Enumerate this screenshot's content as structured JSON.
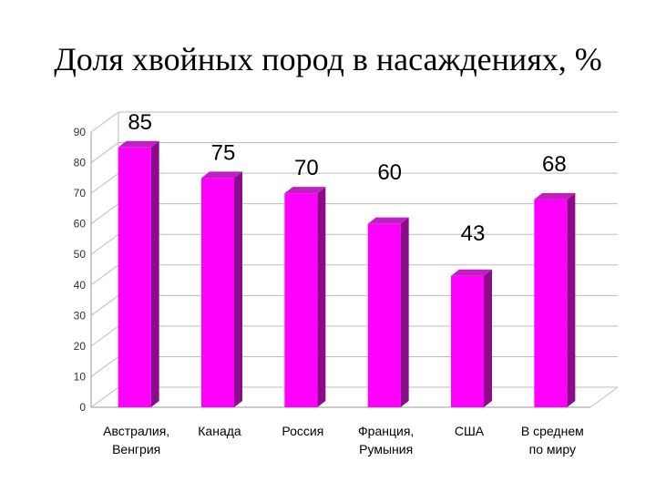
{
  "chart_data": {
    "type": "bar",
    "title": "Доля хвойных пород в насаждениях, %",
    "categories": [
      [
        "Австралия,",
        "Венгрия"
      ],
      [
        "Канада"
      ],
      [
        "Россия"
      ],
      [
        "Франция,",
        "Румыния"
      ],
      [
        "США"
      ],
      [
        "В среднем",
        "по миру"
      ]
    ],
    "values": [
      85,
      75,
      70,
      60,
      43,
      68
    ],
    "ylim": [
      0,
      90
    ],
    "yticks": [
      0,
      10,
      20,
      30,
      40,
      50,
      60,
      70,
      80,
      90
    ],
    "grid": true,
    "legend": "none",
    "colors": {
      "front": "#ff00ff",
      "side": "#8c0a8c",
      "top": "#c020c0",
      "grid": "#bdbdbd"
    }
  }
}
